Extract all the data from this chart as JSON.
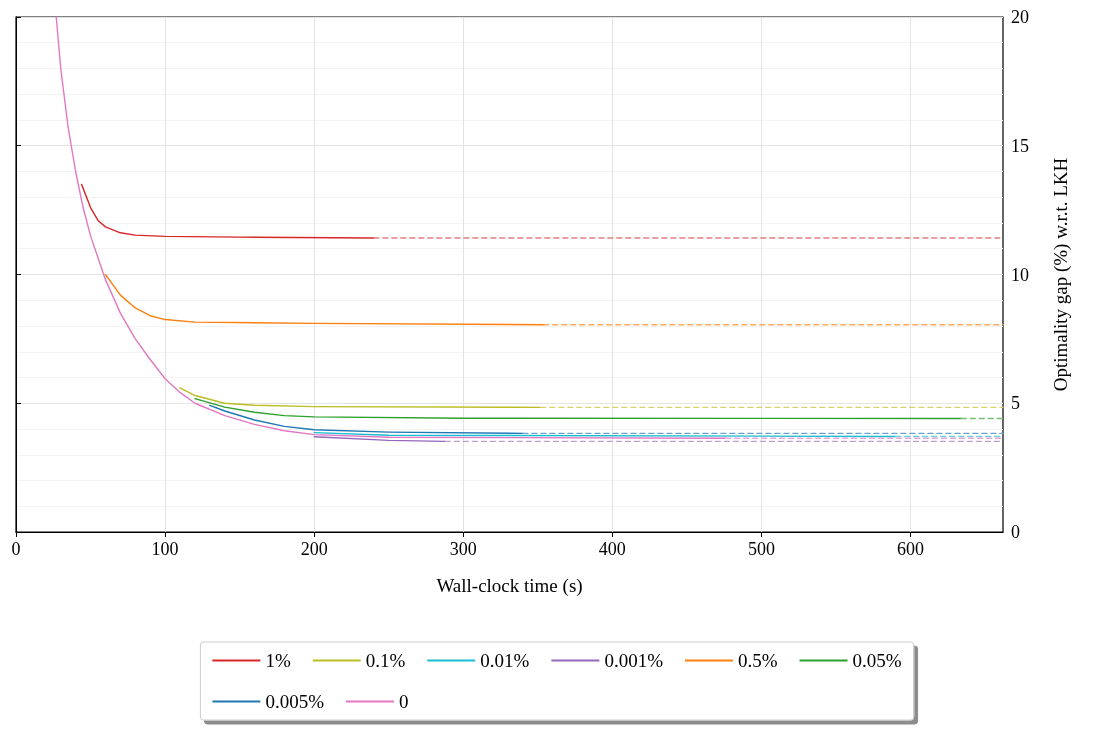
{
  "chart_data": {
    "type": "line",
    "xlabel": "Wall-clock time (s)",
    "ylabel": "Optimality gap (%) w.r.t. LKH",
    "xlim": [
      0,
      662
    ],
    "xticks": [
      0,
      100,
      200,
      300,
      400,
      500,
      600
    ],
    "ylim": [
      0,
      20
    ],
    "yticks": [
      0,
      5,
      10,
      15,
      20
    ],
    "grid": true,
    "legend": "bottom",
    "marker": "none",
    "line_style": "solid",
    "series": [
      {
        "name": "1%",
        "color": "#d62728",
        "x": [
          44,
          50,
          55,
          60,
          70,
          80,
          100,
          150,
          240
        ],
        "values": [
          13.5,
          12.6,
          12.1,
          11.85,
          11.62,
          11.53,
          11.48,
          11.45,
          11.42
        ]
      },
      {
        "name": "0.5%",
        "color": "#ff7f0e",
        "x": [
          60,
          70,
          80,
          90,
          100,
          120,
          200,
          354
        ],
        "values": [
          10.0,
          9.2,
          8.7,
          8.4,
          8.25,
          8.15,
          8.1,
          8.05
        ]
      },
      {
        "name": "0.1%",
        "color": "#bcbd22",
        "x": [
          110,
          120,
          140,
          160,
          200,
          352
        ],
        "values": [
          5.6,
          5.3,
          5.0,
          4.92,
          4.87,
          4.84
        ]
      },
      {
        "name": "0.05%",
        "color": "#2ca02c",
        "x": [
          120,
          140,
          160,
          180,
          200,
          300,
          634
        ],
        "values": [
          5.18,
          4.85,
          4.65,
          4.52,
          4.47,
          4.42,
          4.41
        ]
      },
      {
        "name": "0.01%",
        "color": "#17becf",
        "x": [
          200,
          250,
          590
        ],
        "values": [
          3.86,
          3.76,
          3.71
        ]
      },
      {
        "name": "0.005%",
        "color": "#1f77b4",
        "x": [
          130,
          140,
          160,
          180,
          200,
          250,
          340
        ],
        "values": [
          4.92,
          4.7,
          4.35,
          4.1,
          3.97,
          3.88,
          3.83
        ]
      },
      {
        "name": "0.001%",
        "color": "#9467bd",
        "x": [
          200,
          250,
          288
        ],
        "values": [
          3.7,
          3.56,
          3.52
        ]
      },
      {
        "name": "0",
        "color": "#e377c2",
        "x": [
          27,
          30,
          35,
          40,
          45,
          50,
          60,
          70,
          80,
          90,
          100,
          110,
          120,
          140,
          160,
          180,
          200,
          250,
          476
        ],
        "values": [
          20,
          18,
          15.7,
          14.0,
          12.6,
          11.5,
          9.8,
          8.5,
          7.5,
          6.7,
          5.95,
          5.42,
          5.0,
          4.52,
          4.18,
          3.93,
          3.78,
          3.68,
          3.64
        ]
      },
      {
        "color": "#e47d7e",
        "line_style": "dashed",
        "x": [
          240,
          662
        ],
        "values": [
          11.42,
          11.42
        ]
      },
      {
        "color": "#ffa95e",
        "line_style": "dashed",
        "x": [
          354,
          662
        ],
        "values": [
          8.05,
          8.05
        ]
      },
      {
        "color": "#d4d46e",
        "line_style": "dashed",
        "x": [
          352,
          662
        ],
        "values": [
          4.84,
          4.84
        ]
      },
      {
        "color": "#73c073",
        "line_style": "dashed",
        "x": [
          634,
          662
        ],
        "values": [
          4.41,
          4.41
        ]
      },
      {
        "color": "#67d4de",
        "line_style": "dashed",
        "x": [
          590,
          662
        ],
        "values": [
          3.71,
          3.71
        ]
      },
      {
        "color": "#6aa3cc",
        "line_style": "dashed",
        "x": [
          340,
          662
        ],
        "values": [
          3.83,
          3.83
        ]
      },
      {
        "color": "#b89fd0",
        "line_style": "dashed",
        "x": [
          288,
          662
        ],
        "values": [
          3.52,
          3.52
        ]
      },
      {
        "color": "#eba4d6",
        "line_style": "dashed",
        "x": [
          476,
          662
        ],
        "values": [
          3.64,
          3.64
        ]
      }
    ]
  }
}
